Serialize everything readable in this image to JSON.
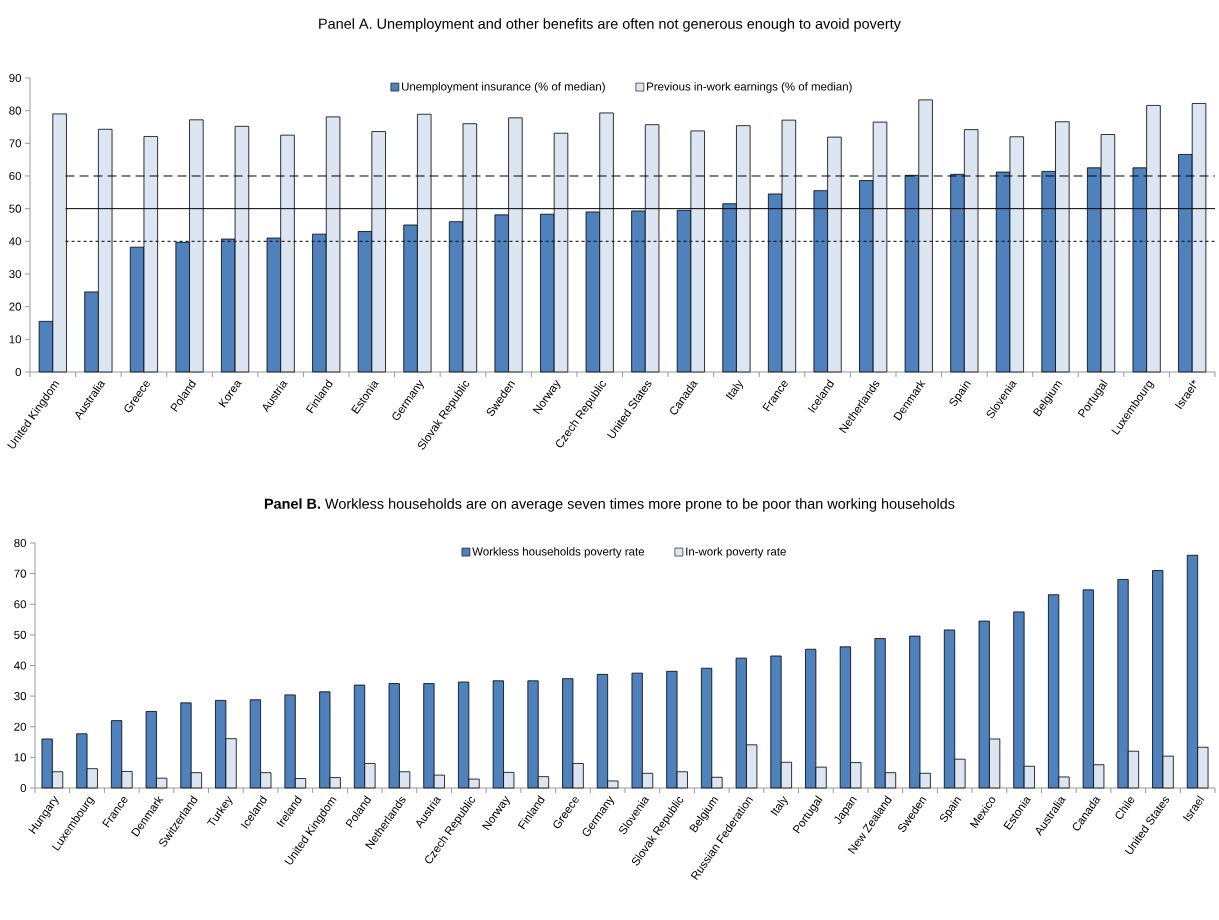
{
  "chart_data": [
    {
      "type": "bar",
      "title": "Panel A. Unemployment and other benefits are often not generous enough to avoid poverty",
      "categories": [
        "United Kingdom",
        "Australia",
        "Greece",
        "Poland",
        "Korea",
        "Austria",
        "Finland",
        "Estonia",
        "Germany",
        "Slovak Republic",
        "Sweden",
        "Norway",
        "Czech Republic",
        "United States",
        "Canada",
        "Italy",
        "France",
        "Iceland",
        "Netherlands",
        "Denmark",
        "Spain",
        "Slovenia",
        "Belgium",
        "Portugal",
        "Luxembourg",
        "Israel*"
      ],
      "series": [
        {
          "name": "Unemployment insurance (% of median)",
          "color": "#4f81bd",
          "values": [
            15.5,
            24.5,
            38.2,
            39.7,
            40.7,
            41,
            42.2,
            43,
            45,
            46,
            48.1,
            48.3,
            49,
            49.3,
            49.5,
            51.5,
            54.5,
            55.5,
            58.6,
            60.2,
            60.5,
            61.2,
            61.4,
            62.5,
            62.5,
            66.6
          ]
        },
        {
          "name": "Previous in-work earnings (% of median)",
          "color": "#dce6f2",
          "values": [
            79,
            74.3,
            72.1,
            77.2,
            75.2,
            72.5,
            78.1,
            73.6,
            78.9,
            76,
            77.8,
            73.1,
            79.3,
            75.7,
            73.8,
            75.4,
            77.1,
            71.9,
            76.5,
            83.3,
            74.2,
            72,
            76.6,
            72.7,
            81.6,
            82.2
          ]
        }
      ],
      "ylim": [
        0,
        90
      ],
      "yticks": [
        0,
        10,
        20,
        30,
        40,
        50,
        60,
        70,
        80,
        90
      ],
      "legend": "top",
      "ref_lines": [
        {
          "axis": "y",
          "value": 40,
          "color": "#000000",
          "line_style": "dotted"
        },
        {
          "axis": "y",
          "value": 50,
          "color": "#000000",
          "line_style": "solid"
        },
        {
          "axis": "y",
          "value": 60,
          "color": "#000000",
          "line_style": "dashed"
        }
      ]
    },
    {
      "type": "bar",
      "title": "**Panel B.** Workless households are on average seven times more prone to be poor than working households",
      "categories": [
        "Hungary",
        "Luxembourg",
        "France",
        "Denmark",
        "Switzerland",
        "Turkey",
        "Iceland",
        "Ireland",
        "United Kingdom",
        "Poland",
        "Netherlands",
        "Austria",
        "Czech Republic",
        "Norway",
        "Finland",
        "Greece",
        "Germany",
        "Slovenia",
        "Slovak Republic",
        "Belgium",
        "Russian Federation",
        "Italy",
        "Portugal",
        "Japan",
        "New Zealand",
        "Sweden",
        "Spain",
        "Mexico",
        "Estonia",
        "Australia",
        "Canada",
        "Chile",
        "United States",
        "Israel"
      ],
      "series": [
        {
          "name": "Workless households poverty rate",
          "color": "#4f81bd",
          "values": [
            16,
            17.7,
            22,
            25,
            27.8,
            28.6,
            28.8,
            30.4,
            31.4,
            33.6,
            34.1,
            34.1,
            34.6,
            35,
            35,
            35.7,
            37.1,
            37.5,
            38.1,
            39.1,
            42.4,
            43.1,
            45.3,
            46.1,
            48.8,
            49.6,
            51.6,
            54.5,
            57.5,
            63.1,
            64.7,
            68.1,
            71,
            76
          ]
        },
        {
          "name": "In-work poverty rate",
          "color": "#dce6f2",
          "values": [
            5.3,
            6.3,
            5.4,
            3.2,
            5,
            16.1,
            5,
            3.1,
            3.4,
            8,
            5.3,
            4.2,
            2.9,
            5.1,
            3.7,
            8,
            2.3,
            4.8,
            5.3,
            3.5,
            14.1,
            8.4,
            6.8,
            8.3,
            5,
            4.8,
            9.4,
            16,
            7.1,
            3.6,
            7.6,
            12,
            10.4,
            13.3
          ]
        }
      ],
      "ylim": [
        0,
        80
      ],
      "yticks": [
        0,
        10,
        20,
        30,
        40,
        50,
        60,
        70,
        80
      ],
      "legend": "top"
    }
  ]
}
